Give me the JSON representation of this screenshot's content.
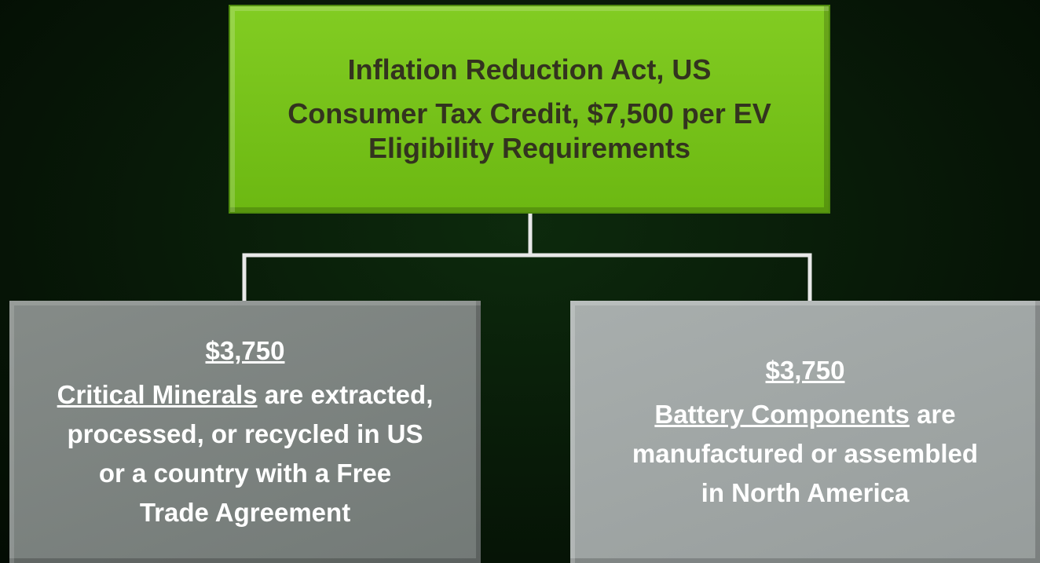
{
  "nodes": [
    {
      "lines": [
        "Inflation Reduction Act, US",
        "Consumer Tax Credit, $7,500 per EV",
        "Eligibility Requirements"
      ]
    },
    {
      "amount": "$3,750",
      "lead": "Critical Minerals",
      "lead_rest": "are extracted,",
      "lines": [
        "processed, or recycled in US",
        "or a country with a Free",
        "Trade Agreement"
      ]
    },
    {
      "amount": "$3,750",
      "lead": "Battery Components",
      "lead_rest": "are",
      "lines": [
        "manufactured or assembled",
        "in North America"
      ]
    }
  ]
}
